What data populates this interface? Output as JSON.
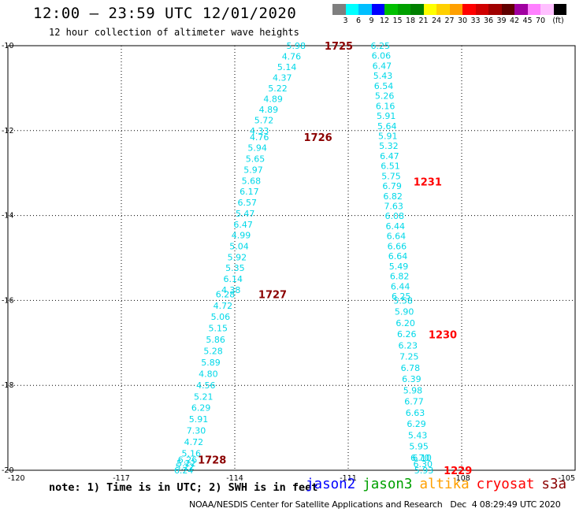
{
  "header": {
    "title": "12:00 – 23:59 UTC 12/01/2020",
    "subtitle": "12 hour collection of altimeter wave heights"
  },
  "legend": {
    "swatch_colors": [
      "#7f7f7f",
      "#00ffff",
      "#00bfff",
      "#0000ff",
      "#00c000",
      "#00a000",
      "#008000",
      "#ffff00",
      "#ffd000",
      "#ffa000",
      "#ff0000",
      "#d00000",
      "#a00000",
      "#600000",
      "#a000a0",
      "#ff80ff",
      "#ffc0ff",
      "#000000"
    ],
    "tick_labels": [
      "3",
      "6",
      "9",
      "12",
      "15",
      "18",
      "21",
      "24",
      "27",
      "30",
      "33",
      "36",
      "39",
      "42",
      "45",
      "70",
      "(ft)"
    ]
  },
  "map": {
    "x_ticks": [
      "-120",
      "-117",
      "-114",
      "-111",
      "-108",
      "-105"
    ],
    "y_ticks": [
      "-10",
      "-12",
      "-14",
      "-16",
      "-18",
      "-20"
    ],
    "lon_range": [
      -120,
      -105
    ],
    "lat_range": [
      -20,
      -10
    ]
  },
  "tracks": [
    {
      "label": "1725",
      "label_color": "#8b0000",
      "label_lat": -10.0,
      "label_lon": -111.25,
      "lon_start": -112.38,
      "lon_end": -113.35,
      "lat_start": -10.0,
      "lat_end": -12.0,
      "values": [
        "5.98",
        "4.76",
        "5.14",
        "4.37",
        "5.22",
        "4.89",
        "4.89",
        "5.72",
        "4.33"
      ]
    },
    {
      "label": "1726",
      "label_color": "#8b0000",
      "label_lat": -12.15,
      "label_lon": -111.8,
      "lon_start": -113.35,
      "lon_end": -114.1,
      "lat_start": -12.15,
      "lat_end": -15.75,
      "values": [
        "4.76",
        "5.94",
        "5.65",
        "5.97",
        "5.68",
        "6.17",
        "6.57",
        "5.47",
        "6.47",
        "4.99",
        "5.04",
        "5.92",
        "5.35",
        "6.14",
        "4.38"
      ]
    },
    {
      "label": "1727",
      "label_color": "#8b0000",
      "label_lat": -15.85,
      "label_lon": -113.0,
      "lon_start": -114.25,
      "lon_end": -115.15,
      "lat_start": -15.85,
      "lat_end": -19.6,
      "values": [
        "6.28",
        "4.72",
        "5.06",
        "5.15",
        "5.86",
        "5.28",
        "5.89",
        "4.80",
        "4.56",
        "5.21",
        "6.29",
        "5.91",
        "7.30",
        "4.72",
        "5.16"
      ]
    },
    {
      "label": "1728",
      "label_color": "#8b0000",
      "label_lat": -19.75,
      "label_lon": -114.6,
      "lon_start": -115.25,
      "lon_end": -115.35,
      "lat_start": -19.75,
      "lat_end": -20.0,
      "values": [
        "6.26",
        "5.22",
        "5.22",
        "6.24"
      ]
    },
    {
      "label": "1231",
      "label_color": "#ff0000",
      "label_lat": -13.2,
      "label_lon": -108.9,
      "lon_start": -110.15,
      "lon_end": -109.6,
      "lat_start": -10.0,
      "lat_end": -15.9,
      "values": [
        "6.25",
        "6.06",
        "6.47",
        "5.43",
        "6.54",
        "5.26",
        "6.16",
        "5.91",
        "5.64",
        "5.91",
        "5.32",
        "6.47",
        "6.51",
        "5.75",
        "6.79",
        "6.82",
        "7.63",
        "6.08",
        "6.44",
        "6.64",
        "6.66",
        "6.64",
        "5.49",
        "6.82",
        "6.44",
        "6.25"
      ]
    },
    {
      "label": "1230",
      "label_color": "#ff0000",
      "label_lat": -16.8,
      "label_lon": -108.5,
      "lon_start": -109.55,
      "lon_end": -109.1,
      "lat_start": -16.0,
      "lat_end": -19.7,
      "values": [
        "5.58",
        "5.90",
        "6.20",
        "6.26",
        "6.23",
        "7.25",
        "6.78",
        "6.39",
        "5.98",
        "6.77",
        "6.63",
        "6.29",
        "5.43",
        "5.95",
        "6.70"
      ]
    },
    {
      "label": "1229",
      "label_color": "#ff0000",
      "label_lat": -20.0,
      "label_lon": -108.1,
      "lon_start": -109.05,
      "lon_end": -109.0,
      "lat_start": -19.7,
      "lat_end": -20.0,
      "values": [
        "6.10",
        "6.30",
        "5.93"
      ]
    }
  ],
  "value_color": "#00d8e8",
  "note": "note: 1) Time is in UTC; 2) SWH is in feet",
  "satellites": [
    {
      "name": "jason2",
      "color": "#0000ff"
    },
    {
      "name": "jason3",
      "color": "#00a000"
    },
    {
      "name": "altika",
      "color": "#ffa000"
    },
    {
      "name": "cryosat",
      "color": "#ff0000"
    },
    {
      "name": "s3a",
      "color": "#8b0000"
    }
  ],
  "footer": "NOAA/NESDIS Center for Satellite Applications and Research   Dec  4 08:29:49 UTC 2020"
}
